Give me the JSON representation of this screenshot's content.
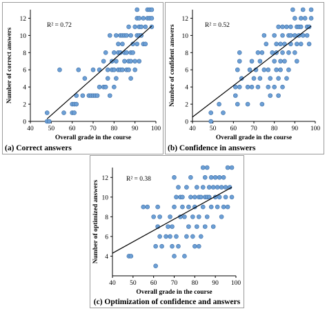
{
  "colors": {
    "point_fill": "#6c9fd5",
    "point_stroke": "#3f6fa6",
    "trend": "#000000"
  },
  "chart_data": [
    {
      "type": "scatter",
      "caption": "(a) Correct answers",
      "xlabel": "Overall grade in the course",
      "ylabel": "Number of correct answers",
      "r2_label": "R² = 0.72",
      "xlim": [
        40,
        100
      ],
      "ylim": [
        0,
        13
      ],
      "xticks": [
        40,
        50,
        60,
        70,
        80,
        90,
        100
      ],
      "yticks": [
        0,
        2,
        4,
        6,
        8,
        10,
        12
      ],
      "grid": false,
      "trendline": {
        "x": [
          48,
          98
        ],
        "y": [
          0.3,
          11.1
        ]
      },
      "points": [
        [
          48,
          0
        ],
        [
          48,
          1
        ],
        [
          49,
          0
        ],
        [
          54,
          6
        ],
        [
          56,
          1
        ],
        [
          60,
          1
        ],
        [
          60,
          2
        ],
        [
          61,
          1
        ],
        [
          61,
          2
        ],
        [
          62,
          2
        ],
        [
          62,
          3
        ],
        [
          63,
          6
        ],
        [
          65,
          3
        ],
        [
          66,
          5
        ],
        [
          68,
          3
        ],
        [
          69,
          3
        ],
        [
          70,
          3
        ],
        [
          70,
          6
        ],
        [
          71,
          3
        ],
        [
          72,
          3
        ],
        [
          73,
          6
        ],
        [
          73,
          4
        ],
        [
          75,
          4
        ],
        [
          75,
          7
        ],
        [
          76,
          4
        ],
        [
          76,
          8
        ],
        [
          77,
          5
        ],
        [
          77,
          6
        ],
        [
          78,
          10
        ],
        [
          78,
          3
        ],
        [
          79,
          6
        ],
        [
          79,
          7
        ],
        [
          80,
          4
        ],
        [
          80,
          6
        ],
        [
          80,
          8
        ],
        [
          81,
          5
        ],
        [
          81,
          7
        ],
        [
          81,
          10
        ],
        [
          82,
          6
        ],
        [
          82,
          8
        ],
        [
          82,
          9
        ],
        [
          83,
          6
        ],
        [
          83,
          8
        ],
        [
          83,
          10
        ],
        [
          84,
          6
        ],
        [
          84,
          9
        ],
        [
          84,
          10
        ],
        [
          85,
          7
        ],
        [
          85,
          8
        ],
        [
          85,
          10
        ],
        [
          86,
          6
        ],
        [
          86,
          8
        ],
        [
          86,
          10
        ],
        [
          87,
          6
        ],
        [
          87,
          7
        ],
        [
          87,
          11
        ],
        [
          88,
          5
        ],
        [
          88,
          7
        ],
        [
          88,
          8
        ],
        [
          88,
          10
        ],
        [
          89,
          8
        ],
        [
          89,
          9
        ],
        [
          90,
          7
        ],
        [
          90,
          11
        ],
        [
          90,
          6
        ],
        [
          91,
          9
        ],
        [
          91,
          10
        ],
        [
          91,
          12
        ],
        [
          91,
          13
        ],
        [
          92,
          7
        ],
        [
          92,
          10
        ],
        [
          92,
          11
        ],
        [
          92,
          12
        ],
        [
          93,
          10
        ],
        [
          93,
          11
        ],
        [
          94,
          9
        ],
        [
          94,
          12
        ],
        [
          95,
          11
        ],
        [
          95,
          9
        ],
        [
          96,
          12
        ],
        [
          96,
          13
        ],
        [
          97,
          12
        ],
        [
          97,
          13
        ],
        [
          98,
          11
        ],
        [
          98,
          12
        ],
        [
          98,
          13
        ]
      ]
    },
    {
      "type": "scatter",
      "caption": "(b) Confidence in answers",
      "xlabel": "Overall grade in the course",
      "ylabel": "Number of confident answers",
      "r2_label": "R² = 0.52",
      "xlim": [
        40,
        100
      ],
      "ylim": [
        0,
        13
      ],
      "xticks": [
        40,
        50,
        60,
        70,
        80,
        90,
        100
      ],
      "yticks": [
        0,
        2,
        4,
        6,
        8,
        10,
        12
      ],
      "grid": false,
      "trendline": {
        "x": [
          40,
          98
        ],
        "y": [
          0.5,
          11.1
        ]
      },
      "points": [
        [
          49,
          0
        ],
        [
          49,
          1
        ],
        [
          53,
          2
        ],
        [
          55,
          1
        ],
        [
          61,
          3
        ],
        [
          61,
          4
        ],
        [
          62,
          2
        ],
        [
          62,
          6
        ],
        [
          63,
          7
        ],
        [
          63,
          8
        ],
        [
          63,
          4
        ],
        [
          64,
          5
        ],
        [
          67,
          4
        ],
        [
          67,
          2
        ],
        [
          68,
          6
        ],
        [
          69,
          4
        ],
        [
          69,
          7
        ],
        [
          70,
          5
        ],
        [
          71,
          6
        ],
        [
          72,
          4
        ],
        [
          72,
          8
        ],
        [
          73,
          7
        ],
        [
          73,
          5
        ],
        [
          74,
          2
        ],
        [
          74,
          8
        ],
        [
          75,
          6
        ],
        [
          75,
          10
        ],
        [
          76,
          9
        ],
        [
          77,
          4
        ],
        [
          77,
          6
        ],
        [
          78,
          3
        ],
        [
          78,
          5
        ],
        [
          79,
          8
        ],
        [
          80,
          4
        ],
        [
          80,
          7
        ],
        [
          80,
          10
        ],
        [
          81,
          8
        ],
        [
          81,
          6
        ],
        [
          81,
          9
        ],
        [
          82,
          3
        ],
        [
          82,
          5
        ],
        [
          82,
          11
        ],
        [
          83,
          6
        ],
        [
          83,
          7
        ],
        [
          83,
          9
        ],
        [
          84,
          4
        ],
        [
          84,
          8
        ],
        [
          84,
          10
        ],
        [
          84,
          11
        ],
        [
          85,
          7
        ],
        [
          85,
          9
        ],
        [
          86,
          5
        ],
        [
          86,
          11
        ],
        [
          87,
          8
        ],
        [
          87,
          10
        ],
        [
          87,
          6
        ],
        [
          88,
          11
        ],
        [
          88,
          9
        ],
        [
          88,
          10
        ],
        [
          89,
          13
        ],
        [
          90,
          8
        ],
        [
          90,
          10
        ],
        [
          90,
          12
        ],
        [
          91,
          7
        ],
        [
          91,
          9
        ],
        [
          91,
          11
        ],
        [
          92,
          10
        ],
        [
          92,
          11
        ],
        [
          93,
          9
        ],
        [
          93,
          11
        ],
        [
          93,
          12
        ],
        [
          94,
          10
        ],
        [
          94,
          13
        ],
        [
          95,
          12
        ],
        [
          96,
          10
        ],
        [
          96,
          11
        ],
        [
          97,
          11
        ],
        [
          97,
          9
        ],
        [
          98,
          12
        ],
        [
          98,
          13
        ]
      ]
    },
    {
      "type": "scatter",
      "caption": "(c) Optimization of confidence and answers",
      "xlabel": "Overall grade in the course",
      "ylabel": "Number of optimized answers",
      "r2_label": "R² = 0.38",
      "xlim": [
        40,
        100
      ],
      "ylim": [
        2,
        13
      ],
      "xticks": [
        40,
        50,
        60,
        70,
        80,
        90,
        100
      ],
      "yticks": [
        4,
        6,
        8,
        10,
        12
      ],
      "grid": false,
      "trendline": {
        "x": [
          40,
          98
        ],
        "y": [
          4.3,
          11.0
        ]
      },
      "points": [
        [
          48,
          4
        ],
        [
          49,
          4
        ],
        [
          55,
          9
        ],
        [
          57,
          9
        ],
        [
          60,
          8
        ],
        [
          61,
          3
        ],
        [
          61,
          5
        ],
        [
          62,
          7
        ],
        [
          62,
          9
        ],
        [
          63,
          8
        ],
        [
          63,
          6
        ],
        [
          64,
          5
        ],
        [
          66,
          6
        ],
        [
          67,
          7
        ],
        [
          68,
          6
        ],
        [
          68,
          8
        ],
        [
          69,
          7
        ],
        [
          69,
          5
        ],
        [
          70,
          4
        ],
        [
          70,
          9
        ],
        [
          70,
          12
        ],
        [
          71,
          6
        ],
        [
          71,
          10
        ],
        [
          72,
          5
        ],
        [
          72,
          11
        ],
        [
          73,
          8
        ],
        [
          73,
          10
        ],
        [
          74,
          9
        ],
        [
          74,
          10
        ],
        [
          75,
          8
        ],
        [
          75,
          4
        ],
        [
          76,
          6
        ],
        [
          76,
          11
        ],
        [
          77,
          7
        ],
        [
          77,
          9
        ],
        [
          78,
          10
        ],
        [
          78,
          12
        ],
        [
          79,
          6
        ],
        [
          79,
          8
        ],
        [
          80,
          5
        ],
        [
          80,
          9
        ],
        [
          80,
          10
        ],
        [
          81,
          7
        ],
        [
          81,
          11
        ],
        [
          82,
          5
        ],
        [
          82,
          8
        ],
        [
          82,
          10
        ],
        [
          83,
          6
        ],
        [
          83,
          10
        ],
        [
          84,
          9
        ],
        [
          84,
          11
        ],
        [
          84,
          13
        ],
        [
          85,
          7
        ],
        [
          85,
          10
        ],
        [
          85,
          12
        ],
        [
          86,
          8
        ],
        [
          86,
          10
        ],
        [
          86,
          13
        ],
        [
          87,
          10
        ],
        [
          87,
          11
        ],
        [
          88,
          9
        ],
        [
          88,
          12
        ],
        [
          89,
          11
        ],
        [
          89,
          7
        ],
        [
          90,
          10
        ],
        [
          90,
          12
        ],
        [
          91,
          9
        ],
        [
          91,
          11
        ],
        [
          92,
          12
        ],
        [
          92,
          10
        ],
        [
          93,
          11
        ],
        [
          93,
          8
        ],
        [
          94,
          9
        ],
        [
          94,
          12
        ],
        [
          95,
          10
        ],
        [
          95,
          11
        ],
        [
          96,
          9
        ],
        [
          96,
          13
        ],
        [
          97,
          11
        ],
        [
          98,
          10
        ],
        [
          98,
          13
        ]
      ]
    }
  ]
}
